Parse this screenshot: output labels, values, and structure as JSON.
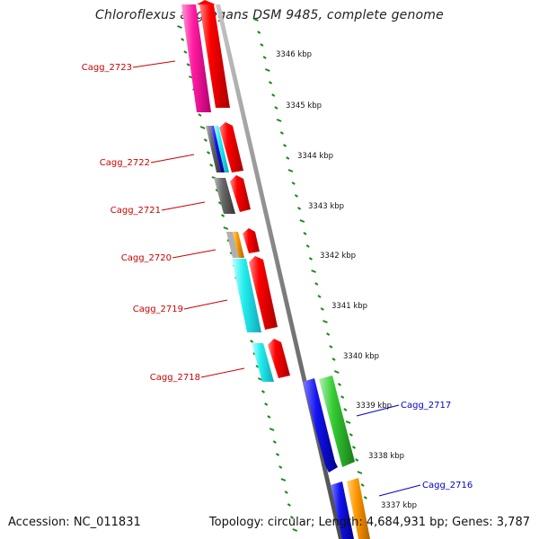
{
  "title": "Chloroflexus aggregans DSM 9485, complete genome",
  "footer": {
    "accession": "Accession: NC_011831",
    "summary": "Topology: circular; Length: 4,684,931 bp; Genes: 3,787"
  },
  "colors": {
    "backbone": "#8a8a8a",
    "tick": "#1a8a1a",
    "label_left": "#cc0000",
    "label_right": "#0000cc",
    "magenta": "#ff1aa0",
    "red": "#ff0000",
    "dark_red": "#cc0000",
    "grey": "#666666",
    "light_grey": "#aaaaaa",
    "cyan": "#22eeee",
    "blue": "#1212ee",
    "green": "#33cc33",
    "orange": "#ff9900"
  },
  "scale_labels": [
    "3346 kbp",
    "3345 kbp",
    "3344 kbp",
    "3343 kbp",
    "3342 kbp",
    "3341 kbp",
    "3340 kbp",
    "3339 kbp",
    "3338 kbp",
    "3337 kbp"
  ],
  "gene_labels_left": [
    "Cagg_2723",
    "Cagg_2722",
    "Cagg_2721",
    "Cagg_2720",
    "Cagg_2719",
    "Cagg_2718"
  ],
  "gene_labels_right": [
    "Cagg_2717",
    "Cagg_2716"
  ]
}
